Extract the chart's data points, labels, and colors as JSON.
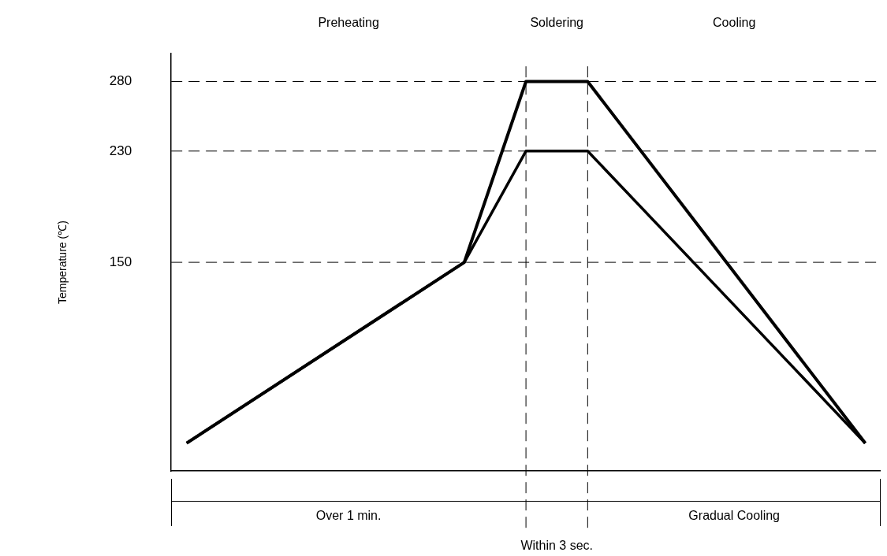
{
  "chart_data": {
    "type": "line",
    "ylabel": "Temperature (℃)",
    "categories": [
      null,
      null,
      null,
      null,
      null,
      null,
      null,
      null,
      null,
      null,
      null,
      null,
      null,
      null,
      null,
      null,
      null,
      null,
      null,
      null,
      null,
      null,
      null
    ],
    "ylim": [
      0,
      300
    ],
    "yticks": [
      150,
      230,
      280
    ],
    "tick_labels": "y",
    "legend": false,
    "marker": "none",
    "line_style": "solid",
    "series": [
      {
        "color": "#000000",
        "values": [
          20,
          null,
          null,
          null,
          null,
          null,
          null,
          null,
          null,
          150,
          null,
          280,
          null,
          280,
          null,
          null,
          null,
          null,
          null,
          null,
          null,
          null,
          20
        ]
      },
      {
        "color": "#000000",
        "values": [
          20,
          null,
          null,
          null,
          null,
          null,
          null,
          null,
          null,
          150,
          null,
          230,
          null,
          230,
          null,
          null,
          null,
          null,
          null,
          null,
          null,
          null,
          20
        ]
      }
    ],
    "ref_lines": [
      {
        "axis": "y",
        "value": 280,
        "line_style": "dashed"
      },
      {
        "axis": "y",
        "value": 230,
        "line_style": "dashed"
      },
      {
        "axis": "y",
        "value": 150,
        "line_style": "dashed"
      }
    ],
    "annotations": [
      "Preheating",
      "Soldering",
      "Cooling",
      "Over 1 min.",
      "Within 3 sec.",
      "Gradual Cooling"
    ]
  }
}
